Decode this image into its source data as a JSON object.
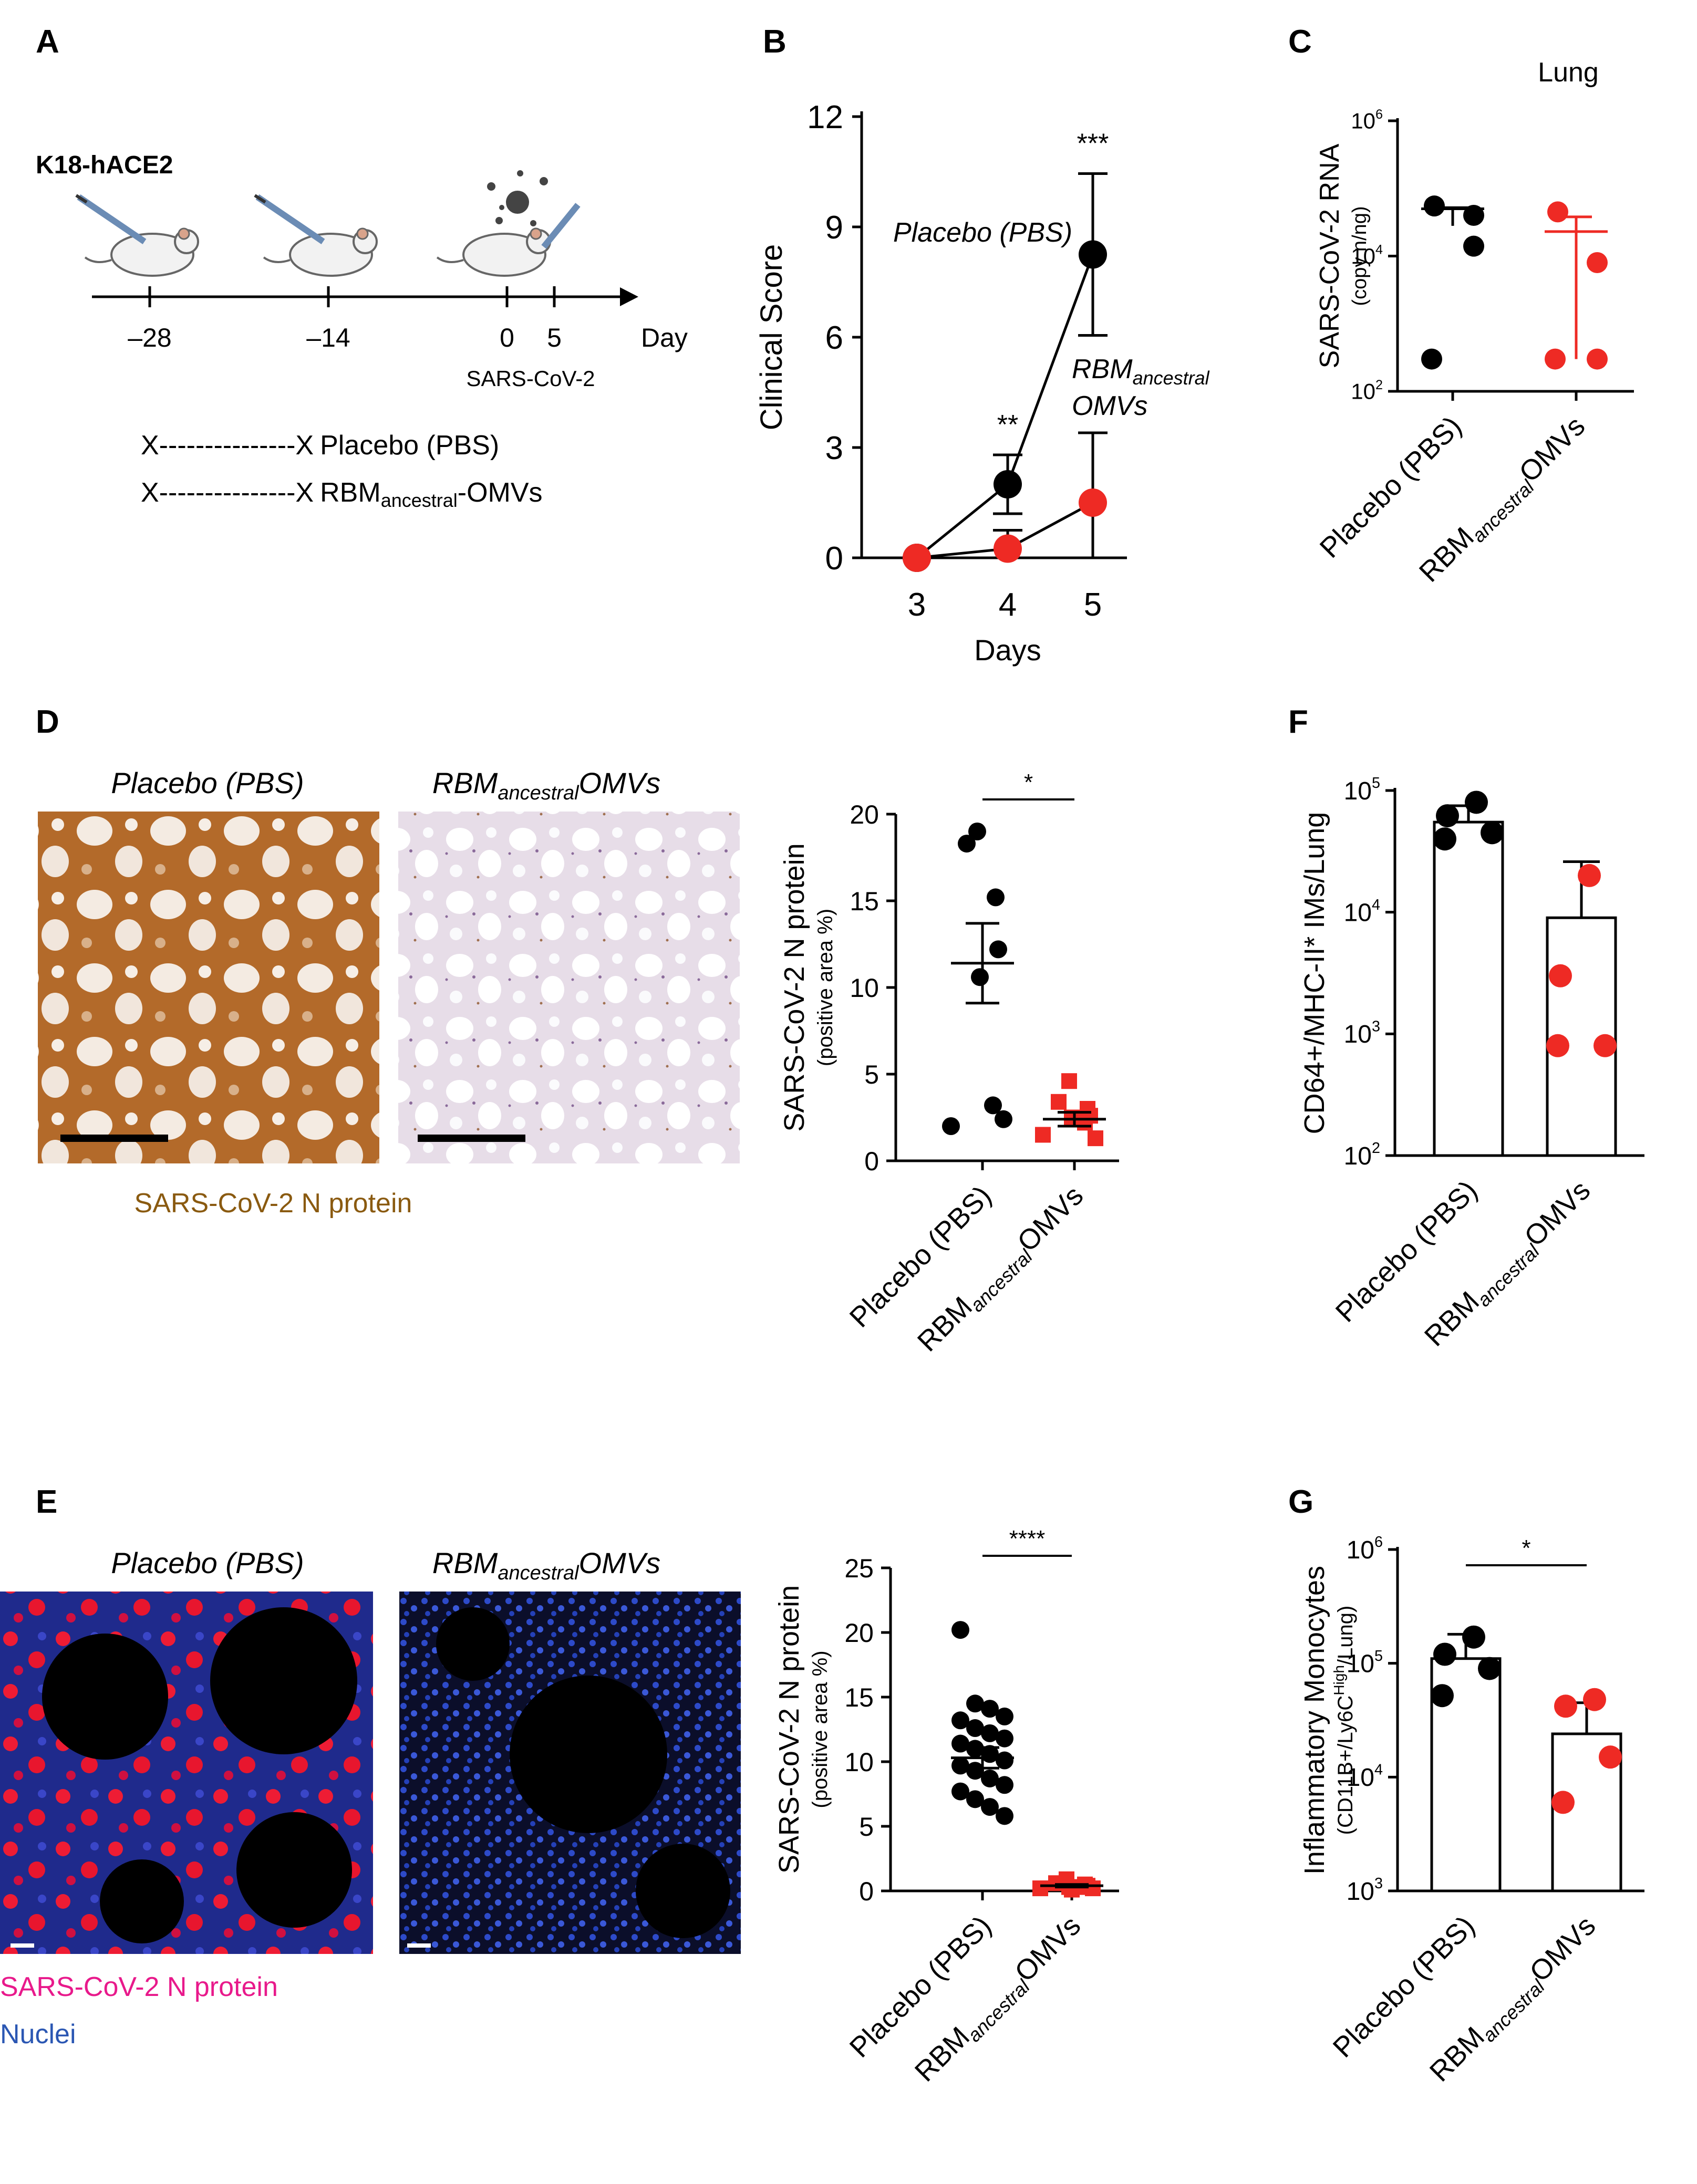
{
  "colors": {
    "placebo": "#000000",
    "omv": "#ee2a24",
    "brown": "#8a5a10",
    "magenta": "#e8198b",
    "blue": "#2b57b3"
  },
  "panels": {
    "A": {
      "letter": "A",
      "strain": "K18-hACE2",
      "ticks": [
        "–28",
        "–14",
        "0",
        "5"
      ],
      "axis_unit": "Day",
      "challenge_label": "SARS-CoV-2",
      "group1": {
        "dashes": "X---------------X",
        "name": "Placebo (PBS)"
      },
      "group2": {
        "dashes": "X---------------X",
        "name_main": "RBM",
        "name_sub": "ancestral",
        "name_end": "-OMVs"
      }
    },
    "B": {
      "letter": "B",
      "label_placebo": "Placebo (PBS)",
      "label_omv_1": "RBM",
      "label_omv_sub": "ancestral",
      "label_omv_2": "OMVs"
    },
    "C": {
      "letter": "C",
      "title": "Lung"
    },
    "D": {
      "letter": "D",
      "img_title_1": "Placebo (PBS)",
      "img_title_2_main": "RBM",
      "img_title_2_sub": "ancestral",
      "img_title_2_end": "OMVs",
      "caption": "SARS-CoV-2 N protein"
    },
    "E": {
      "letter": "E",
      "img_title_1": "Placebo (PBS)",
      "img_title_2_main": "RBM",
      "img_title_2_sub": "ancestral",
      "img_title_2_end": "OMVs",
      "caption_1": "SARS-CoV-2 N protein",
      "caption_2": "Nuclei"
    },
    "F": {
      "letter": "F"
    },
    "G": {
      "letter": "G"
    }
  },
  "categories": {
    "placebo": "Placebo (PBS)",
    "omv_main": "RBM",
    "omv_sub": "ancestral",
    "omv_end": "OMVs"
  },
  "chart_data": [
    {
      "id": "B",
      "type": "line",
      "x": [
        3,
        4,
        5
      ],
      "xticks": [
        "3",
        "4",
        "5"
      ],
      "xlabel": "Days",
      "ylabel": "Clinical Score",
      "ylim": [
        0,
        12
      ],
      "yticks": [
        "0",
        "3",
        "6",
        "9",
        "12"
      ],
      "series": [
        {
          "name": "Placebo (PBS)",
          "values": [
            0,
            2,
            8.25
          ],
          "err": [
            0,
            0.8,
            2.2
          ],
          "color": "#000000"
        },
        {
          "name": "RBM ancestral OMVs",
          "values": [
            0,
            0.25,
            1.5
          ],
          "err": [
            0,
            0.5,
            1.9
          ],
          "color": "#ee2a24"
        }
      ],
      "annotations": [
        {
          "x": 4,
          "text": "**"
        },
        {
          "x": 5,
          "text": "***"
        }
      ]
    },
    {
      "id": "C",
      "type": "scatter",
      "title": "Lung",
      "ylabel": "SARS-CoV-2 RNA",
      "ylabel2": "(copy n/ng)",
      "yscale": "log",
      "ylim": [
        100,
        1000000
      ],
      "yticks": [
        {
          "base": "10",
          "exp": "2"
        },
        {
          "base": "10",
          "exp": "4"
        },
        {
          "base": "10",
          "exp": "6"
        }
      ],
      "groups": [
        {
          "name": "Placebo (PBS)",
          "points": [
            55000,
            40000,
            14000,
            300
          ],
          "mean": 50000,
          "err": [
            28000,
            52000
          ],
          "color": "#000000"
        },
        {
          "name": "RBM ancestral OMVs",
          "points": [
            45000,
            8000,
            300,
            300
          ],
          "mean": 23000,
          "err": [
            300,
            38000
          ],
          "color": "#ee2a24"
        }
      ]
    },
    {
      "id": "D",
      "type": "scatter",
      "ylabel": "SARS-CoV-2 N protein",
      "ylabel2": "(positive area %)",
      "ylim": [
        0,
        20
      ],
      "yticks": [
        "0",
        "5",
        "10",
        "15",
        "20"
      ],
      "groups": [
        {
          "name": "Placebo (PBS)",
          "points": [
            19,
            18.3,
            15.2,
            12.2,
            10.6,
            3.2,
            2.0,
            2.4
          ],
          "mean": 11.4,
          "sem": 2.3,
          "color": "#000000",
          "marker": "circle"
        },
        {
          "name": "RBM ancestral OMVs",
          "points": [
            4.6,
            3.4,
            3.0,
            2.6,
            2.5,
            2.2,
            1.5,
            1.3
          ],
          "mean": 2.4,
          "sem": 0.4,
          "color": "#ee2a24",
          "marker": "square"
        }
      ],
      "annotations": [
        {
          "text": "*"
        }
      ]
    },
    {
      "id": "E",
      "type": "scatter",
      "ylabel": "SARS-CoV-2 N protein",
      "ylabel2": "(positive area %)",
      "ylim": [
        0,
        25
      ],
      "yticks": [
        "0",
        "5",
        "10",
        "15",
        "20",
        "25"
      ],
      "groups": [
        {
          "name": "Placebo (PBS)",
          "points": [
            20.2,
            14.5,
            14.1,
            13.5,
            13.2,
            12.6,
            12.2,
            11.8,
            11.4,
            11.0,
            10.6,
            10.1,
            9.7,
            9.3,
            8.7,
            8.2,
            7.7,
            7.1,
            6.5,
            5.8
          ],
          "mean": 10.3,
          "sem": 0.8,
          "color": "#000000",
          "marker": "circle"
        },
        {
          "name": "RBM ancestral OMVs",
          "points": [
            0.9,
            0.6,
            0.5,
            0.4,
            0.3,
            0.3,
            0.2,
            0.2,
            0.1,
            0.1
          ],
          "mean": 0.4,
          "sem": 0.1,
          "color": "#ee2a24",
          "marker": "square"
        }
      ],
      "annotations": [
        {
          "text": "****"
        }
      ]
    },
    {
      "id": "F",
      "type": "bar",
      "ylabel": "CD64+/MHC-II* IMs/Lung",
      "yscale": "log",
      "ylim": [
        100,
        100000
      ],
      "yticks": [
        {
          "base": "10",
          "exp": "2"
        },
        {
          "base": "10",
          "exp": "3"
        },
        {
          "base": "10",
          "exp": "4"
        },
        {
          "base": "10",
          "exp": "5"
        }
      ],
      "groups": [
        {
          "name": "Placebo (PBS)",
          "value": 55000,
          "err": [
            38000,
            75000
          ],
          "points": [
            80000,
            62000,
            45000,
            40000
          ],
          "color": "#000000"
        },
        {
          "name": "RBM ancestral OMVs",
          "value": 9000,
          "err": [
            2000,
            26000
          ],
          "points": [
            20000,
            3000,
            800,
            800
          ],
          "color": "#ee2a24"
        }
      ]
    },
    {
      "id": "G",
      "type": "bar",
      "ylabel": "Inflammatory Monocytes",
      "ylabel2_parts": [
        "(CD11B+/Ly6C",
        "High",
        "/Lung)"
      ],
      "yscale": "log",
      "ylim": [
        1000,
        1000000
      ],
      "yticks": [
        {
          "base": "10",
          "exp": "3"
        },
        {
          "base": "10",
          "exp": "4"
        },
        {
          "base": "10",
          "exp": "5"
        },
        {
          "base": "10",
          "exp": "6"
        }
      ],
      "groups": [
        {
          "name": "Placebo (PBS)",
          "value": 110000,
          "err": [
            45000,
            180000
          ],
          "points": [
            170000,
            120000,
            90000,
            52000
          ],
          "color": "#000000"
        },
        {
          "name": "RBM ancestral OMVs",
          "value": 24000,
          "err": [
            3000,
            45000
          ],
          "points": [
            48000,
            42000,
            15000,
            6000
          ],
          "color": "#ee2a24"
        }
      ],
      "annotations": [
        {
          "text": "*"
        }
      ]
    }
  ]
}
